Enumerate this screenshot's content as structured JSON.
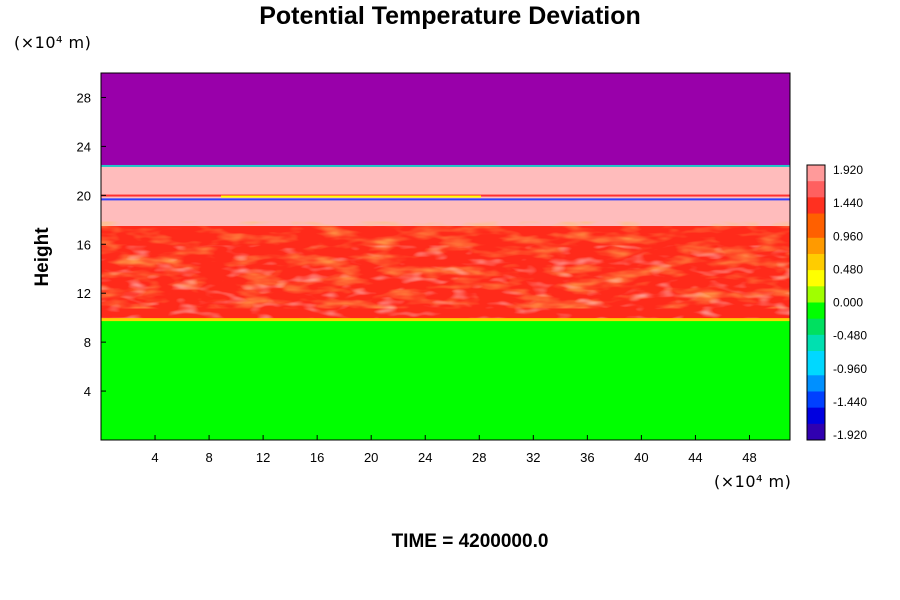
{
  "title": "Potential Temperature Deviation",
  "time_label": "TIME = 4200000.0",
  "chart_data": {
    "type": "heatmap",
    "title": "Potential Temperature Deviation",
    "xlabel": "",
    "ylabel": "Height",
    "x_unit": "(×10⁴ m)",
    "y_unit": "(×10⁴ m)",
    "x_ticks": [
      4,
      8,
      12,
      16,
      20,
      24,
      28,
      32,
      36,
      40,
      44,
      48
    ],
    "y_ticks": [
      4,
      8,
      12,
      16,
      20,
      24,
      28
    ],
    "xlim": [
      0,
      51
    ],
    "ylim": [
      0,
      30
    ],
    "colorbar_labels": [
      "1.920",
      "1.440",
      "0.960",
      "0.480",
      "0.000",
      "-0.480",
      "-0.960",
      "-1.440",
      "-1.920"
    ],
    "colorbar_range": [
      -1.92,
      1.92
    ],
    "layers": [
      {
        "y": [
          0,
          9.8
        ],
        "value": 0.0,
        "color": "#00ff00"
      },
      {
        "y": [
          9.8,
          17.5
        ],
        "value": 1.6,
        "color": "#ff2a1a"
      },
      {
        "y": [
          17.5,
          22.4
        ],
        "value": 1.92,
        "color": "#ffbcbc"
      },
      {
        "y": [
          22.4,
          30
        ],
        "value": -1.92,
        "color": "#9900aa"
      }
    ]
  }
}
